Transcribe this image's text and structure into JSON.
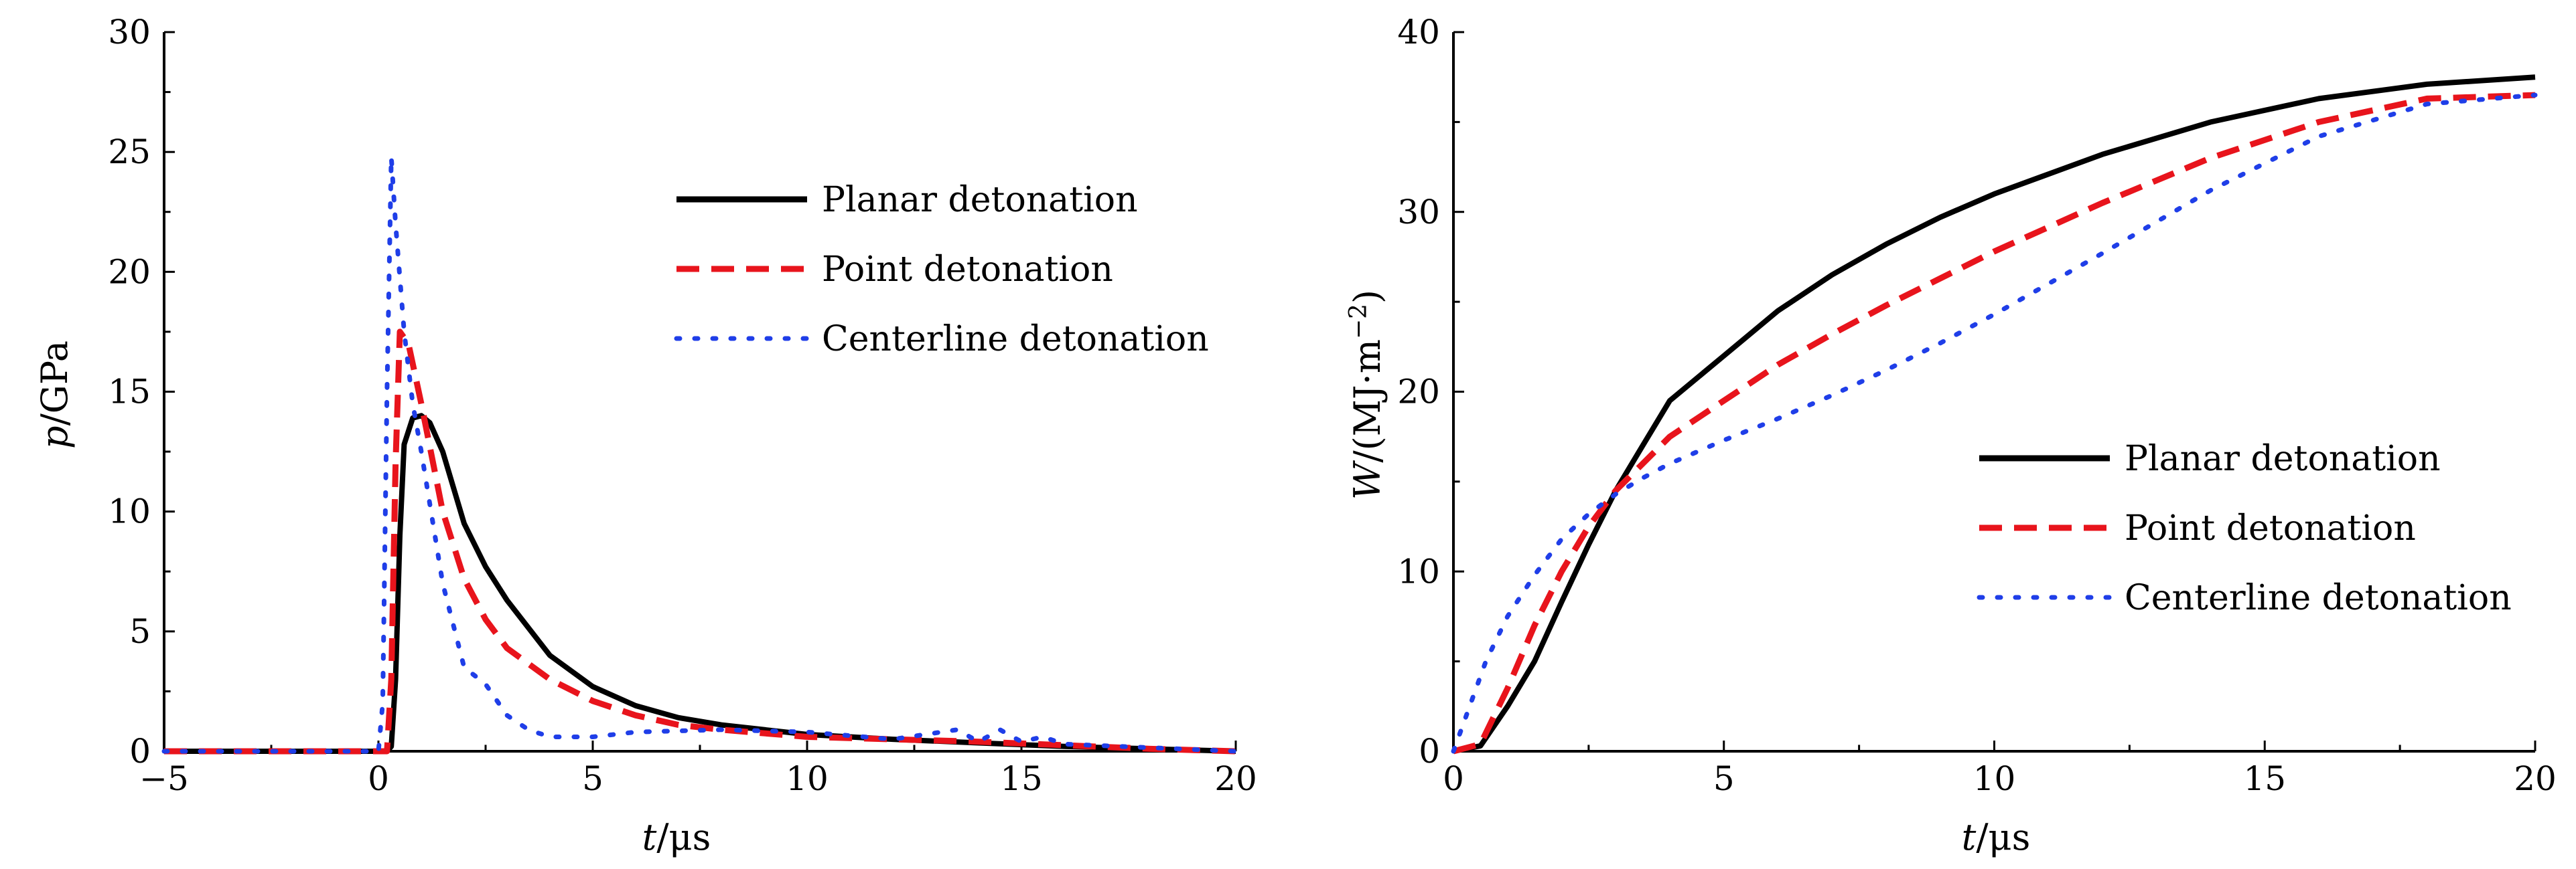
{
  "chart_data": [
    {
      "type": "line",
      "title": "",
      "xlabel_var": "t",
      "xlabel_unit": "/μs",
      "ylabel_var": "p",
      "ylabel_unit": "/GPa",
      "xlim": [
        -5,
        20
      ],
      "ylim": [
        0,
        30
      ],
      "xticks": [
        "−5",
        "0",
        "5",
        "10",
        "15",
        "20"
      ],
      "xtick_values": [
        -5,
        0,
        5,
        10,
        15,
        20
      ],
      "yticks": [
        "0",
        "5",
        "10",
        "15",
        "20",
        "25",
        "30"
      ],
      "ytick_values": [
        0,
        5,
        10,
        15,
        20,
        25,
        30
      ],
      "grid": false,
      "legend_position": "top-right",
      "series": [
        {
          "name": "Planar detonation",
          "color": "#000000",
          "style": "solid",
          "x": [
            -5,
            0,
            0.2,
            0.3,
            0.4,
            0.5,
            0.6,
            0.8,
            1.0,
            1.2,
            1.5,
            2.0,
            2.5,
            3.0,
            4.0,
            5.0,
            6.0,
            7.0,
            8.0,
            10.0,
            12.0,
            14.0,
            16.0,
            18.0,
            20.0
          ],
          "y": [
            0,
            0,
            0,
            0.2,
            3,
            9,
            12.8,
            13.9,
            14.0,
            13.7,
            12.5,
            9.5,
            7.7,
            6.3,
            4.0,
            2.7,
            1.9,
            1.4,
            1.1,
            0.7,
            0.5,
            0.35,
            0.2,
            0.1,
            0
          ]
        },
        {
          "name": "Point detonation",
          "color": "#e8141c",
          "style": "dashed",
          "x": [
            -5,
            0,
            0.2,
            0.3,
            0.4,
            0.5,
            0.7,
            1.0,
            1.5,
            2.0,
            2.5,
            3.0,
            4.0,
            5.0,
            6.0,
            7.0,
            8.0,
            10.0,
            12.0,
            14.0,
            16.0,
            18.0,
            20.0
          ],
          "y": [
            0,
            0,
            0,
            3,
            12,
            17.5,
            17.0,
            14.5,
            10.0,
            7.2,
            5.5,
            4.3,
            3.0,
            2.1,
            1.5,
            1.1,
            0.9,
            0.6,
            0.5,
            0.4,
            0.25,
            0.1,
            0
          ]
        },
        {
          "name": "Centerline detonation",
          "color": "#1f3ee8",
          "style": "dotted",
          "x": [
            -5,
            0,
            0.1,
            0.2,
            0.3,
            0.4,
            0.6,
            0.8,
            1.0,
            1.5,
            2.0,
            2.5,
            3.0,
            3.5,
            4.0,
            5.0,
            6.0,
            8.0,
            10.0,
            12.0,
            13.5,
            14.0,
            14.5,
            15.0,
            15.5,
            16.0,
            18.0,
            20.0
          ],
          "y": [
            0,
            0,
            2,
            15,
            24.8,
            22,
            17.5,
            14.5,
            12.5,
            7.0,
            3.5,
            2.8,
            1.5,
            0.9,
            0.6,
            0.6,
            0.8,
            0.9,
            0.8,
            0.5,
            0.9,
            0.4,
            0.9,
            0.4,
            0.6,
            0.3,
            0.15,
            0
          ]
        }
      ]
    },
    {
      "type": "line",
      "title": "",
      "xlabel_var": "t",
      "xlabel_unit": "/μs",
      "ylabel_var": "W",
      "ylabel_unit": "/(MJ·m",
      "ylabel_sup": "−2",
      "ylabel_close": ")",
      "xlim": [
        0,
        20
      ],
      "ylim": [
        0,
        40
      ],
      "xticks": [
        "0",
        "5",
        "10",
        "15",
        "20"
      ],
      "xtick_values": [
        0,
        5,
        10,
        15,
        20
      ],
      "yticks": [
        "0",
        "10",
        "20",
        "30",
        "40"
      ],
      "ytick_values": [
        0,
        10,
        20,
        30,
        40
      ],
      "grid": false,
      "legend_position": "bottom-right",
      "series": [
        {
          "name": "Planar detonation",
          "color": "#000000",
          "style": "solid",
          "x": [
            0,
            0.5,
            1,
            1.5,
            2,
            2.5,
            3,
            3.5,
            4,
            5,
            6,
            7,
            8,
            9,
            10,
            12,
            14,
            16,
            18,
            20
          ],
          "y": [
            0,
            0.3,
            2.5,
            5,
            8.3,
            11.5,
            14.5,
            17,
            19.5,
            22,
            24.5,
            26.5,
            28.2,
            29.7,
            31,
            33.2,
            35,
            36.3,
            37.1,
            37.5
          ]
        },
        {
          "name": "Point detonation",
          "color": "#e8141c",
          "style": "dashed",
          "x": [
            0,
            0.5,
            1,
            1.5,
            2,
            2.5,
            3,
            4,
            5,
            6,
            7,
            8,
            9,
            10,
            12,
            14,
            16,
            18,
            20
          ],
          "y": [
            0,
            0.4,
            3.5,
            7,
            10,
            12.5,
            14.5,
            17.5,
            19.5,
            21.5,
            23.2,
            24.8,
            26.3,
            27.8,
            30.5,
            33,
            35,
            36.3,
            36.5
          ]
        },
        {
          "name": "Centerline detonation",
          "color": "#1f3ee8",
          "style": "dotted",
          "x": [
            0,
            0.3,
            0.6,
            1,
            1.5,
            2,
            2.5,
            3,
            3.5,
            4,
            5,
            6,
            7,
            8,
            9,
            10,
            12,
            14,
            16,
            18,
            20
          ],
          "y": [
            0,
            2.5,
            5,
            7.5,
            9.8,
            11.8,
            13.2,
            14.3,
            15.2,
            16,
            17.3,
            18.5,
            19.8,
            21.2,
            22.7,
            24.3,
            27.7,
            31.2,
            34.2,
            36,
            36.5
          ]
        }
      ]
    }
  ]
}
